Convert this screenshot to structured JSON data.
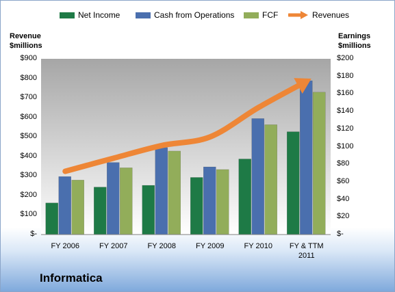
{
  "company": "Informatica",
  "legend": {
    "net_income": "Net Income",
    "cfo": "Cash from Operations",
    "fcf": "FCF",
    "revenues": "Revenues"
  },
  "axes": {
    "left_title_1": "Revenue",
    "left_title_2": "$millions",
    "right_title_1": "Earnings",
    "right_title_2": "$millions"
  },
  "colors": {
    "net_income": "#1e7a46",
    "cfo": "#4a6fae",
    "fcf": "#92ad5a",
    "revenues": "#ee8636",
    "plot_top": "#a6a6a6",
    "plot_bottom": "#ffffff"
  },
  "chart_data": {
    "type": "bar",
    "categories": [
      "FY 2006",
      "FY 2007",
      "FY 2008",
      "FY 2009",
      "FY 2010",
      "FY & TTM\n2011"
    ],
    "left_axis": {
      "ylabel": "Revenue $millions",
      "ylim": [
        0,
        900
      ],
      "ticks": [
        "$-",
        "$100",
        "$200",
        "$300",
        "$400",
        "$500",
        "$600",
        "$700",
        "$800",
        "$900"
      ]
    },
    "right_axis": {
      "ylabel": "Earnings $millions",
      "ylim": [
        0,
        200
      ],
      "ticks": [
        "$-",
        "$20",
        "$40",
        "$60",
        "$80",
        "$100",
        "$120",
        "$140",
        "$160",
        "$180",
        "$200"
      ]
    },
    "series": [
      {
        "name": "Net Income",
        "axis": "right",
        "type": "bar",
        "values": [
          36,
          54,
          56,
          65,
          86,
          117
        ]
      },
      {
        "name": "Cash from Operations",
        "axis": "right",
        "type": "bar",
        "values": [
          66,
          82,
          99,
          77,
          132,
          175
        ]
      },
      {
        "name": "FCF",
        "axis": "right",
        "type": "bar",
        "values": [
          62,
          76,
          95,
          74,
          125,
          162
        ]
      },
      {
        "name": "Revenues",
        "axis": "left",
        "type": "line",
        "values": [
          324,
          391,
          456,
          500,
          650,
          785
        ]
      }
    ],
    "grid": false,
    "legend_position": "top"
  }
}
